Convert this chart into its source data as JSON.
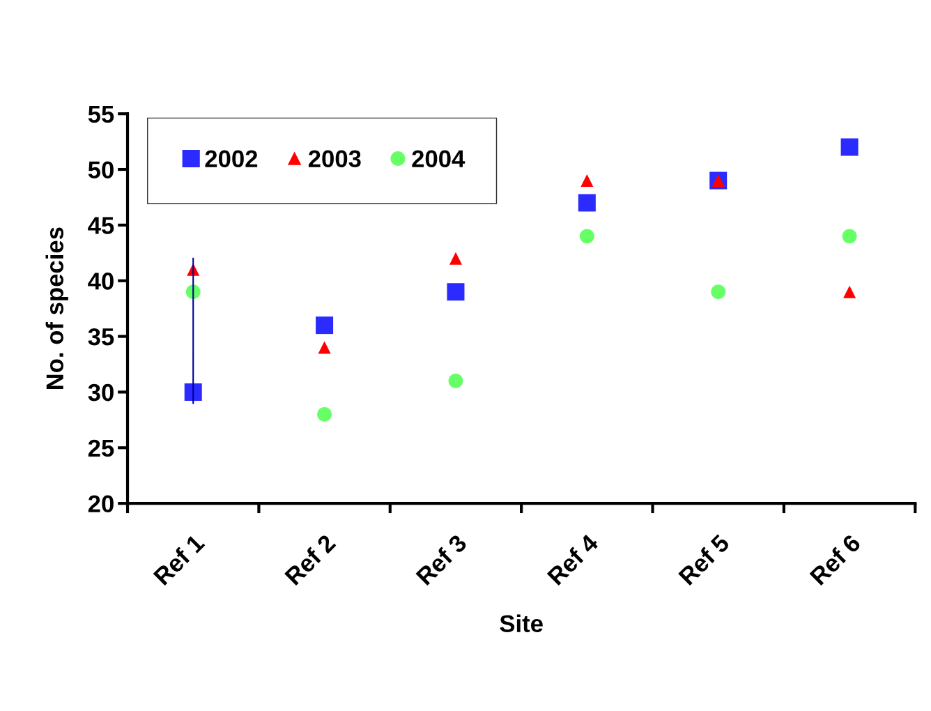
{
  "chart_data": {
    "type": "scatter",
    "xlabel": "Site",
    "ylabel": "No. of species",
    "categories": [
      "Ref 1",
      "Ref 2",
      "Ref 3",
      "Ref 4",
      "Ref 5",
      "Ref 6"
    ],
    "series": [
      {
        "name": "2002",
        "color": "#2b2bff",
        "marker": "square",
        "values": [
          30,
          36,
          39,
          47,
          49,
          52
        ]
      },
      {
        "name": "2003",
        "color": "#ff0000",
        "marker": "triangle",
        "values": [
          41,
          34,
          42,
          49,
          49,
          39
        ]
      },
      {
        "name": "2004",
        "color": "#66ff66",
        "marker": "circle",
        "values": [
          39,
          28,
          31,
          44,
          39,
          44
        ]
      },
      {
        "type": "line",
        "color": "#000099",
        "marker": "none",
        "x": [
          "Ref 1",
          "Ref 1"
        ],
        "values": [
          29,
          42
        ]
      }
    ],
    "ylim": [
      20,
      55
    ],
    "yticks": [
      20,
      25,
      30,
      35,
      40,
      45,
      50,
      55
    ],
    "grid": false,
    "legend": "top left"
  }
}
